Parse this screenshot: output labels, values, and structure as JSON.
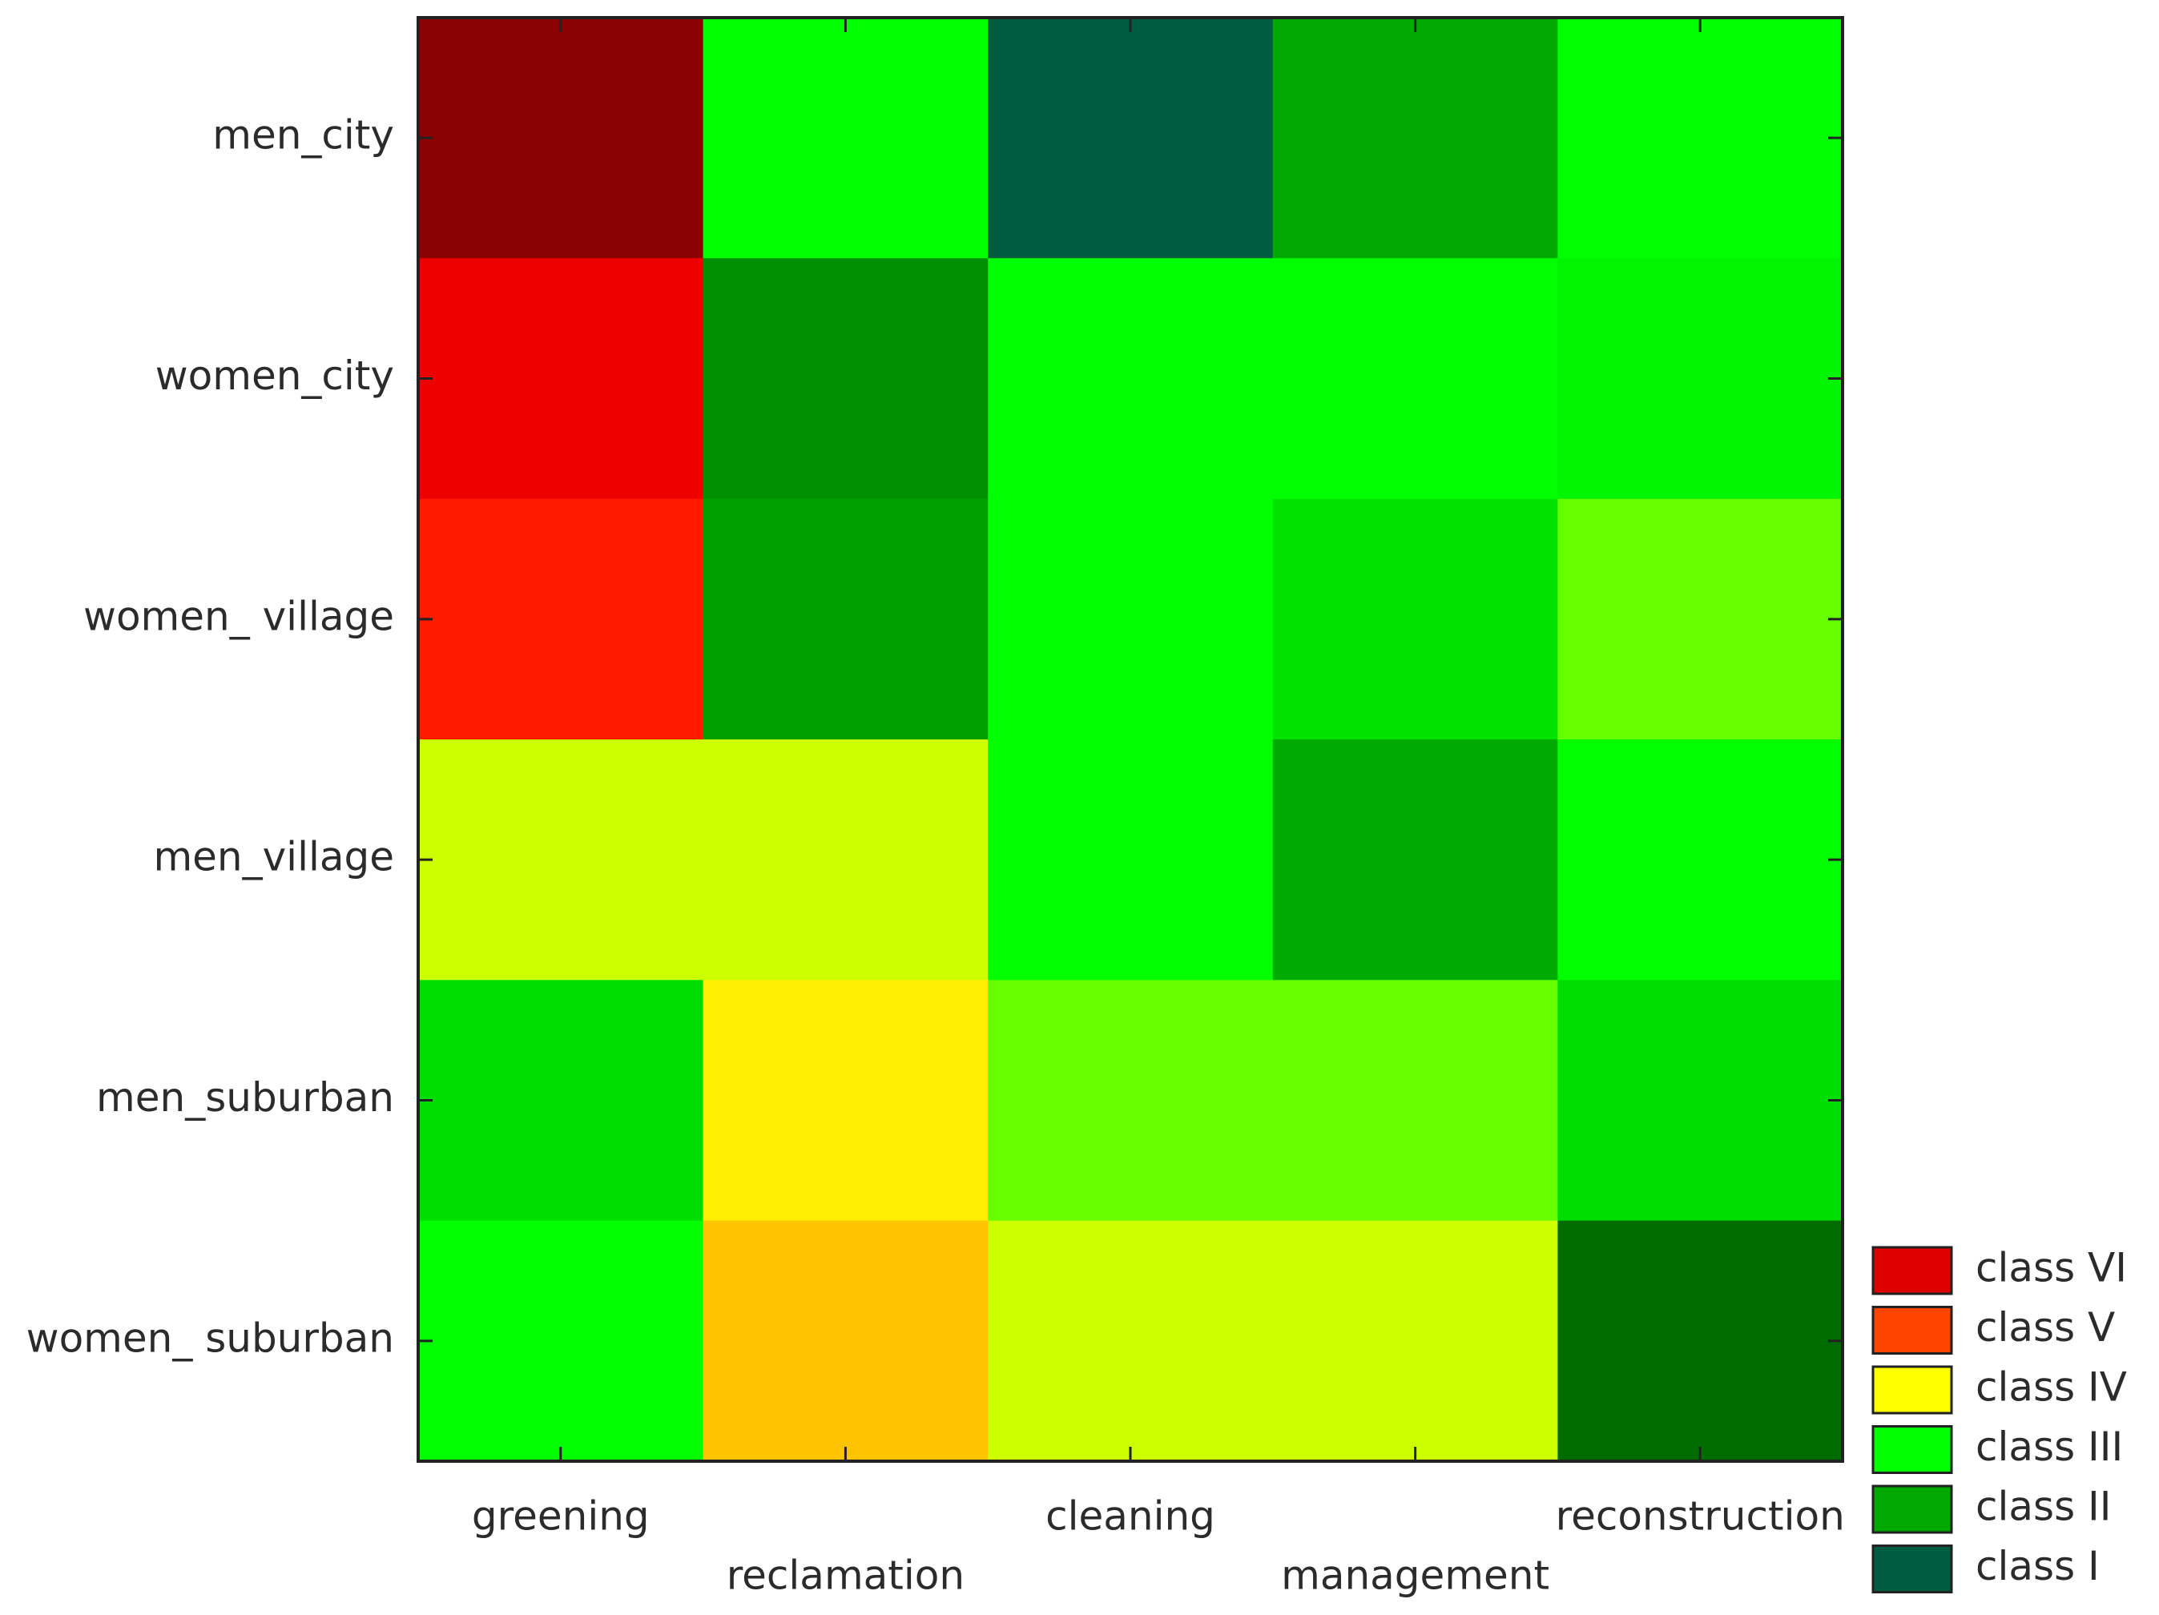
{
  "chart_data": {
    "type": "heatmap",
    "title": "",
    "xlabel": "",
    "ylabel": "",
    "x_categories": [
      "greening",
      "reclamation",
      "cleaning",
      "management",
      "reconstruction"
    ],
    "y_categories": [
      "men_city",
      "women_city",
      "women_ village",
      "men_village",
      "men_suburban",
      "women_ suburban"
    ],
    "values": [
      [
        "class VI",
        "class III",
        "class I",
        "class II",
        "class III"
      ],
      [
        "class V",
        "class II",
        "class III",
        "class III",
        "class III"
      ],
      [
        "class V",
        "class II",
        "class III",
        "class III",
        "class III"
      ],
      [
        "class IV",
        "class IV",
        "class III",
        "class II",
        "class III"
      ],
      [
        "class III",
        "class IV",
        "class III",
        "class III",
        "class III"
      ],
      [
        "class III",
        "class IV",
        "class IV",
        "class IV",
        "class II"
      ]
    ],
    "cell_colors": [
      [
        "#8b0000",
        "#00ff00",
        "#005c40",
        "#00a800",
        "#00ff00"
      ],
      [
        "#ee0000",
        "#008f00",
        "#00ff00",
        "#00ff00",
        "#00f500"
      ],
      [
        "#ff1a00",
        "#009f00",
        "#00ff00",
        "#00e200",
        "#66ff00"
      ],
      [
        "#ccff00",
        "#ccff00",
        "#00ff00",
        "#00aa00",
        "#00ff00"
      ],
      [
        "#00dd00",
        "#ffee00",
        "#66ff00",
        "#66ff00",
        "#00dd00"
      ],
      [
        "#00ff00",
        "#ffc400",
        "#ccff00",
        "#ccff00",
        "#006c00"
      ]
    ],
    "legend": {
      "position": "bottom-right",
      "entries": [
        {
          "label": "class VI",
          "color": "#dd0000"
        },
        {
          "label": "class V",
          "color": "#ff4400"
        },
        {
          "label": "class IV",
          "color": "#ffff00"
        },
        {
          "label": "class III",
          "color": "#00ff00"
        },
        {
          "label": "class II",
          "color": "#00a800"
        },
        {
          "label": "class I",
          "color": "#005c40"
        }
      ]
    },
    "grid": false
  }
}
